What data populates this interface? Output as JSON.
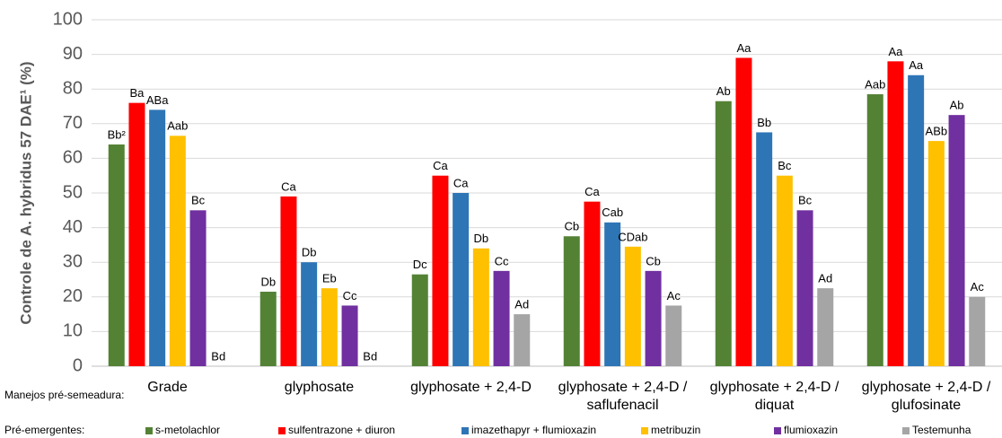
{
  "chart_data": {
    "type": "bar",
    "y_label": "Controle de A. hybridus 57 DAE¹ (%)",
    "x_label": "Manejos pré-semeadura:",
    "legend_title": "Pré-emergentes:",
    "categories": [
      "Grade",
      "glyphosate",
      "glyphosate + 2,4-D",
      "glyphosate + 2,4-D /\nsaflufenacil",
      "glyphosate + 2,4-D /\ndiquat",
      "glyphosate + 2,4-D /\nglufosinate"
    ],
    "series": [
      {
        "name": "s-metolachlor",
        "color": "#548235",
        "values": [
          64,
          21.5,
          26.5,
          37.5,
          76.5,
          78.5
        ],
        "value_labels": [
          "Bb²",
          "Db",
          "Dc",
          "Cb",
          "Ab",
          "Aab"
        ]
      },
      {
        "name": "sulfentrazone + diuron",
        "color": "#ff0000",
        "values": [
          76,
          49,
          55,
          47.5,
          89,
          88
        ],
        "value_labels": [
          "Ba",
          "Ca",
          "Ca",
          "Ca",
          "Aa",
          "Aa"
        ]
      },
      {
        "name": "imazethapyr + flumioxazin",
        "color": "#2e75b6",
        "values": [
          74,
          30,
          50,
          41.5,
          67.5,
          84
        ],
        "value_labels": [
          "ABa",
          "Db",
          "Ca",
          "Cab",
          "Bb",
          "Aa"
        ]
      },
      {
        "name": "metribuzin",
        "color": "#ffc000",
        "values": [
          66.5,
          22.5,
          34,
          34.5,
          55,
          65
        ],
        "value_labels": [
          "Aab",
          "Eb",
          "Db",
          "CDab",
          "Bc",
          "ABb"
        ]
      },
      {
        "name": "flumioxazin",
        "color": "#7030a0",
        "values": [
          45,
          17.5,
          27.5,
          27.5,
          45,
          72.5
        ],
        "value_labels": [
          "Bc",
          "Cc",
          "Cc",
          "Cb",
          "Bc",
          "Ab"
        ]
      },
      {
        "name": "Testemunha",
        "color": "#a5a5a5",
        "values": [
          0,
          0,
          15,
          17.5,
          22.5,
          20
        ],
        "value_labels": [
          "Bd",
          "Bd",
          "Ad",
          "Ac",
          "Ad",
          "Ac"
        ]
      }
    ],
    "ylim": [
      0,
      100
    ],
    "yticks": [
      0,
      10,
      20,
      30,
      40,
      50,
      60,
      70,
      80,
      90,
      100
    ],
    "grid": true
  }
}
